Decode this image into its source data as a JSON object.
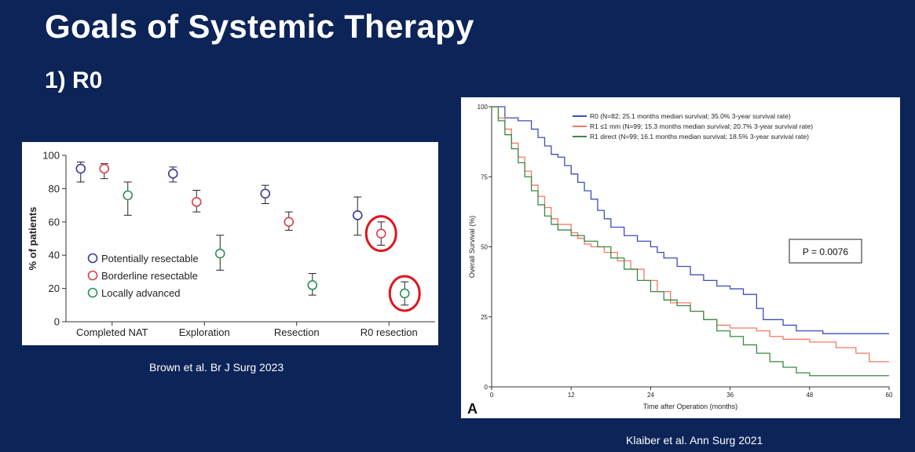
{
  "slide": {
    "title": "Goals of Systemic Therapy",
    "subtitle": "1) R0"
  },
  "captions": {
    "left": "Brown et al. Br J Surg 2023",
    "right": "Klaiber et al. Ann Surg 2021"
  },
  "colors": {
    "background": "#0c2457",
    "highlight_circle": "#e0141e"
  },
  "chart_data": [
    {
      "type": "scatter",
      "title": "",
      "xlabel": "",
      "ylabel": "% of patients",
      "categories": [
        "Completed NAT",
        "Exploration",
        "Resection",
        "R0 resection"
      ],
      "yticks": [
        "0",
        "20",
        "40",
        "60",
        "80",
        "100"
      ],
      "ylim": [
        0,
        100
      ],
      "grid": false,
      "legend_position": "middle-left",
      "series": [
        {
          "name": "Potentially resectable",
          "color": "#3a3a9e",
          "values": [
            92,
            89,
            77,
            64
          ],
          "lower": [
            84,
            84,
            71,
            52
          ],
          "upper": [
            96,
            93,
            82,
            75
          ]
        },
        {
          "name": "Borderline resectable",
          "color": "#d9414b",
          "values": [
            92,
            72,
            60,
            53
          ],
          "lower": [
            86,
            66,
            55,
            46
          ],
          "upper": [
            95,
            79,
            66,
            60
          ]
        },
        {
          "name": "Locally advanced",
          "color": "#2f8f5a",
          "values": [
            76,
            41,
            22,
            17
          ],
          "lower": [
            64,
            31,
            16,
            10
          ],
          "upper": [
            84,
            52,
            29,
            24
          ]
        }
      ],
      "highlighted": [
        {
          "series": "Borderline resectable",
          "category": "R0 resection"
        },
        {
          "series": "Locally advanced",
          "category": "R0 resection"
        }
      ]
    },
    {
      "type": "line",
      "title": "",
      "xlabel": "Time after Operation (months)",
      "ylabel": "Overall Survival (%)",
      "panel_label": "A",
      "annotation": "P = 0.0076",
      "xlim": [
        0,
        60
      ],
      "ylim": [
        0,
        100
      ],
      "xticks": [
        "0",
        "12",
        "24",
        "36",
        "48",
        "60"
      ],
      "yticks": [
        "0",
        "25",
        "50",
        "75",
        "100"
      ],
      "grid": false,
      "legend_position": "top-right",
      "series": [
        {
          "name": "R0 (N=82; 25.1 months median survival; 35.0% 3-year survival rate)",
          "color": "#3b4fb8",
          "points": [
            [
              0,
              100
            ],
            [
              2,
              96
            ],
            [
              4,
              95
            ],
            [
              6,
              92
            ],
            [
              7,
              89
            ],
            [
              8,
              86
            ],
            [
              9,
              83
            ],
            [
              10,
              82
            ],
            [
              11,
              79
            ],
            [
              12,
              76
            ],
            [
              13,
              73
            ],
            [
              14,
              70
            ],
            [
              15,
              67
            ],
            [
              16,
              63
            ],
            [
              17,
              60
            ],
            [
              18,
              57
            ],
            [
              20,
              54
            ],
            [
              22,
              52
            ],
            [
              24,
              50
            ],
            [
              25,
              48
            ],
            [
              26,
              46
            ],
            [
              28,
              43
            ],
            [
              30,
              40
            ],
            [
              32,
              38
            ],
            [
              34,
              36
            ],
            [
              36,
              35
            ],
            [
              38,
              33
            ],
            [
              40,
              28
            ],
            [
              41,
              24
            ],
            [
              42,
              24
            ],
            [
              44,
              22
            ],
            [
              46,
              20
            ],
            [
              50,
              19
            ],
            [
              55,
              19
            ],
            [
              60,
              19
            ]
          ]
        },
        {
          "name": "R1 ≤1 mm (N=99; 15.3 months median survival; 20.7% 3-year survival rate)",
          "color": "#f07a66",
          "points": [
            [
              0,
              100
            ],
            [
              1,
              96
            ],
            [
              2,
              92
            ],
            [
              3,
              87
            ],
            [
              4,
              82
            ],
            [
              5,
              77
            ],
            [
              6,
              72
            ],
            [
              7,
              68
            ],
            [
              8,
              64
            ],
            [
              9,
              60
            ],
            [
              10,
              58
            ],
            [
              12,
              55
            ],
            [
              13,
              53
            ],
            [
              14,
              51
            ],
            [
              15,
              50
            ],
            [
              17,
              48
            ],
            [
              19,
              45
            ],
            [
              21,
              42
            ],
            [
              23,
              38
            ],
            [
              25,
              34
            ],
            [
              27,
              30
            ],
            [
              30,
              27
            ],
            [
              32,
              24
            ],
            [
              34,
              22
            ],
            [
              36,
              21
            ],
            [
              40,
              20
            ],
            [
              42,
              18
            ],
            [
              44,
              17
            ],
            [
              48,
              16
            ],
            [
              52,
              14
            ],
            [
              55,
              12
            ],
            [
              57,
              9
            ],
            [
              60,
              9
            ]
          ]
        },
        {
          "name": "R1 direct (N=99; 16.1 months median survival; 18.5% 3-year survival rate)",
          "color": "#3a8a45",
          "points": [
            [
              0,
              100
            ],
            [
              1,
              95
            ],
            [
              2,
              90
            ],
            [
              3,
              85
            ],
            [
              4,
              80
            ],
            [
              5,
              75
            ],
            [
              6,
              70
            ],
            [
              7,
              65
            ],
            [
              8,
              61
            ],
            [
              9,
              58
            ],
            [
              10,
              56
            ],
            [
              12,
              54
            ],
            [
              14,
              52
            ],
            [
              16,
              50
            ],
            [
              18,
              46
            ],
            [
              20,
              42
            ],
            [
              22,
              38
            ],
            [
              24,
              34
            ],
            [
              26,
              31
            ],
            [
              28,
              29
            ],
            [
              30,
              27
            ],
            [
              32,
              24
            ],
            [
              34,
              20
            ],
            [
              36,
              18
            ],
            [
              38,
              15
            ],
            [
              40,
              12
            ],
            [
              42,
              9
            ],
            [
              44,
              7
            ],
            [
              46,
              5
            ],
            [
              48,
              4
            ],
            [
              60,
              4
            ]
          ]
        }
      ]
    }
  ]
}
